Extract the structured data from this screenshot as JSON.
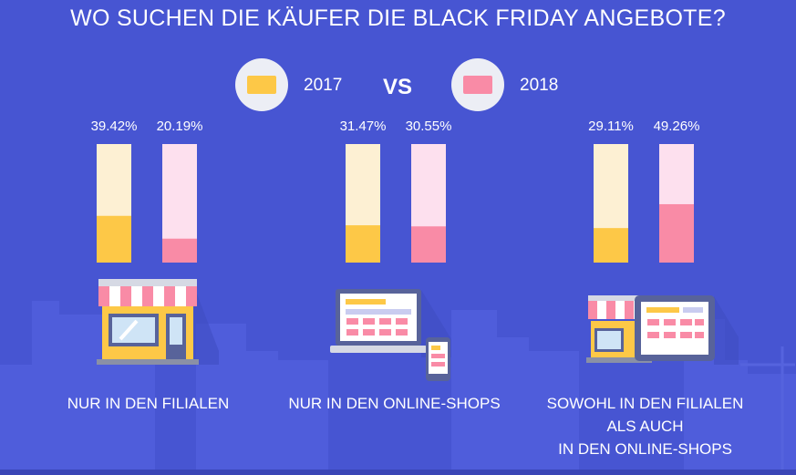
{
  "title": "WO SUCHEN DIE KÄUFER DIE BLACK FRIDAY ANGEBOTE?",
  "legend": {
    "series_a": {
      "label": "2017",
      "color": "#fdc847"
    },
    "vs": "VS",
    "series_b": {
      "label": "2018",
      "color": "#f98ba6"
    }
  },
  "colors": {
    "background": "#4755d2",
    "skyline": "#4e5cd8",
    "track_2017": "#fdf0d3",
    "fill_2017": "#fdc847",
    "track_2018": "#fde0ee",
    "fill_2018": "#f98ba6"
  },
  "chart_data": {
    "type": "bar",
    "categories": [
      "NUR IN DEN FILIALEN",
      "NUR IN DEN ONLINE-SHOPS",
      "SOWOHL IN DEN FILIALEN ALS AUCH IN DEN ONLINE-SHOPS"
    ],
    "category_label_lines": [
      [
        "NUR IN DEN FILIALEN"
      ],
      [
        "NUR IN DEN ONLINE-SHOPS"
      ],
      [
        "SOWOHL IN DEN FILIALEN",
        "ALS AUCH",
        "IN DEN ONLINE-SHOPS"
      ]
    ],
    "series": [
      {
        "name": "2017",
        "values": [
          39.42,
          31.47,
          29.11
        ],
        "labels": [
          "39.42%",
          "31.47%",
          "29.11%"
        ]
      },
      {
        "name": "2018",
        "values": [
          20.19,
          30.55,
          49.26
        ],
        "labels": [
          "20.19%",
          "30.55%",
          "49.26%"
        ]
      }
    ],
    "ylim": [
      0,
      100
    ],
    "legend_position": "top-center",
    "grid": false,
    "category_icons": [
      "store-icon",
      "laptop-phone-icon",
      "store-tablet-icon"
    ]
  }
}
